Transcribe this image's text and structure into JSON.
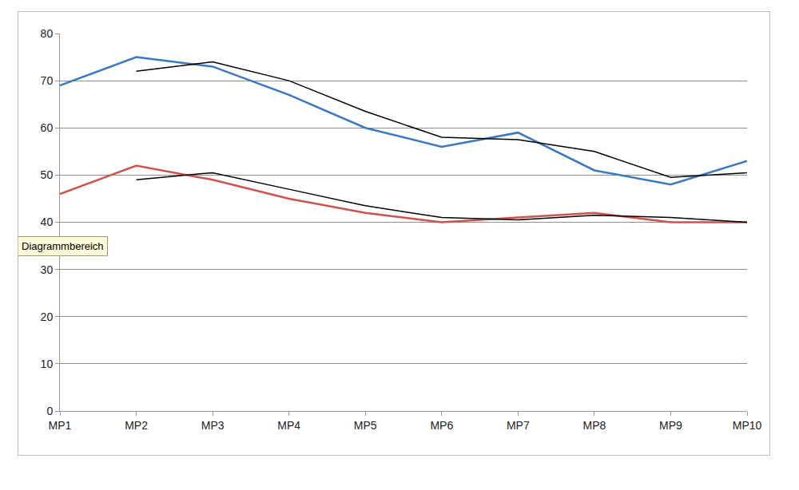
{
  "chart_data": {
    "type": "line",
    "categories": [
      "MP1",
      "MP2",
      "MP3",
      "MP4",
      "MP5",
      "MP6",
      "MP7",
      "MP8",
      "MP9",
      "MP10"
    ],
    "series": [
      {
        "color": "#3b78c0",
        "values": [
          69,
          75,
          73,
          67,
          60,
          56,
          59,
          51,
          48,
          53
        ]
      },
      {
        "color": "#000000",
        "values": [
          null,
          72,
          74,
          70,
          63.5,
          58,
          57.5,
          55,
          49.5,
          50.5
        ]
      },
      {
        "color": "#d0524c",
        "values": [
          46,
          52,
          49,
          45,
          42,
          40,
          41,
          42,
          40,
          40
        ]
      },
      {
        "color": "#000000",
        "values": [
          null,
          49,
          50.5,
          47,
          43.5,
          41,
          40.5,
          41.5,
          41,
          40
        ]
      }
    ],
    "ylim": [
      0,
      80
    ],
    "yticks": [
      0,
      10,
      20,
      30,
      40,
      50,
      60,
      70,
      80
    ],
    "grid": true,
    "annotations": [
      "Diagrammbereich"
    ]
  }
}
